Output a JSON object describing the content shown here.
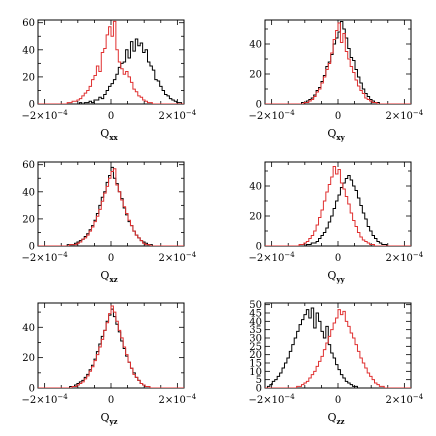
{
  "chart_data": [
    {
      "type": "histogram",
      "xlabel": "Q",
      "xlabel_sub": "xx",
      "xlim": [
        -0.00022,
        0.00022
      ],
      "ylim": [
        0,
        62
      ],
      "xticks": [
        -0.0002,
        0,
        0.0002
      ],
      "xtick_labels": [
        "−2×10",
        "0",
        "2×10"
      ],
      "xtick_exponents": [
        "−4",
        "",
        "−4"
      ],
      "yticks": [
        0,
        20,
        40,
        60
      ],
      "ytick_labels": [
        "0",
        "20",
        "40",
        "60"
      ],
      "series": [
        {
          "color": "#000000",
          "values": [
            0,
            0,
            0,
            0,
            0,
            0,
            0,
            0,
            0,
            0,
            0,
            0,
            0,
            0,
            0,
            0,
            0,
            1,
            0,
            1,
            1,
            2,
            1,
            3,
            3,
            5,
            4,
            7,
            10,
            13,
            15,
            18,
            22,
            27,
            30,
            31,
            40,
            34,
            46,
            39,
            48,
            43,
            45,
            38,
            40,
            31,
            28,
            25,
            18,
            17,
            13,
            10,
            7,
            6,
            4,
            3,
            2,
            1,
            1,
            0
          ]
        },
        {
          "color": "#e03030",
          "values": [
            0,
            0,
            0,
            0,
            0,
            0,
            0,
            0,
            0,
            0,
            0,
            0,
            1,
            1,
            2,
            2,
            3,
            4,
            6,
            8,
            10,
            13,
            18,
            21,
            28,
            24,
            38,
            41,
            51,
            57,
            50,
            61,
            40,
            31,
            26,
            22,
            24,
            20,
            16,
            11,
            9,
            6,
            5,
            3,
            2,
            1,
            1,
            0,
            0,
            0,
            0,
            0,
            0,
            0,
            0,
            0,
            0,
            0,
            0,
            0
          ]
        }
      ]
    },
    {
      "type": "histogram",
      "xlabel": "Q",
      "xlabel_sub": "xy",
      "xlim": [
        -0.00022,
        0.00022
      ],
      "ylim": [
        0,
        56
      ],
      "xticks": [
        -0.0002,
        0,
        0.0002
      ],
      "xtick_labels": [
        "−2×10",
        "0",
        "2×10"
      ],
      "xtick_exponents": [
        "−4",
        "",
        "−4"
      ],
      "yticks": [
        0,
        20,
        40
      ],
      "ytick_labels": [
        "0",
        "20",
        "40"
      ],
      "series": [
        {
          "color": "#000000",
          "values": [
            0,
            0,
            0,
            0,
            0,
            0,
            0,
            0,
            0,
            0,
            0,
            0,
            0,
            0,
            0,
            1,
            1,
            2,
            3,
            4,
            6,
            9,
            11,
            15,
            19,
            25,
            28,
            33,
            40,
            44,
            48,
            55,
            50,
            44,
            37,
            31,
            29,
            23,
            18,
            14,
            10,
            7,
            5,
            3,
            2,
            1,
            1,
            0,
            0,
            0,
            0,
            0,
            0,
            0,
            0,
            0,
            0,
            0,
            0,
            0
          ]
        },
        {
          "color": "#e03030",
          "values": [
            0,
            0,
            0,
            0,
            0,
            0,
            0,
            0,
            0,
            0,
            0,
            0,
            0,
            0,
            0,
            0,
            1,
            1,
            2,
            3,
            5,
            8,
            10,
            14,
            18,
            23,
            27,
            34,
            43,
            49,
            54,
            41,
            47,
            35,
            30,
            25,
            21,
            16,
            12,
            9,
            7,
            4,
            3,
            2,
            1,
            1,
            0,
            0,
            0,
            0,
            0,
            0,
            0,
            0,
            0,
            0,
            0,
            0,
            0,
            0
          ]
        }
      ]
    },
    {
      "type": "histogram",
      "xlabel": "Q",
      "xlabel_sub": "xz",
      "xlim": [
        -0.00022,
        0.00022
      ],
      "ylim": [
        0,
        62
      ],
      "xticks": [
        -0.0002,
        0,
        0.0002
      ],
      "xtick_labels": [
        "−2×10",
        "0",
        "2×10"
      ],
      "xtick_exponents": [
        "−4",
        "",
        "−4"
      ],
      "yticks": [
        0,
        20,
        40,
        60
      ],
      "ytick_labels": [
        "0",
        "20",
        "40",
        "60"
      ],
      "series": [
        {
          "color": "#000000",
          "values": [
            0,
            0,
            0,
            0,
            0,
            0,
            0,
            0,
            0,
            0,
            0,
            0,
            1,
            1,
            1,
            2,
            3,
            4,
            5,
            7,
            9,
            12,
            15,
            19,
            24,
            30,
            36,
            40,
            47,
            52,
            58,
            50,
            46,
            40,
            35,
            28,
            23,
            18,
            15,
            11,
            8,
            6,
            4,
            3,
            2,
            1,
            1,
            0,
            0,
            0,
            0,
            0,
            0,
            0,
            0,
            0,
            0,
            0,
            0,
            0
          ]
        },
        {
          "color": "#e03030",
          "values": [
            0,
            0,
            0,
            0,
            0,
            0,
            0,
            0,
            0,
            0,
            0,
            0,
            0,
            1,
            1,
            1,
            2,
            3,
            5,
            6,
            8,
            11,
            14,
            18,
            22,
            27,
            33,
            39,
            44,
            50,
            55,
            57,
            45,
            40,
            34,
            29,
            24,
            19,
            15,
            11,
            8,
            6,
            4,
            2,
            1,
            1,
            0,
            0,
            0,
            0,
            0,
            0,
            0,
            0,
            0,
            0,
            0,
            0,
            0,
            0
          ]
        }
      ]
    },
    {
      "type": "histogram",
      "xlabel": "Q",
      "xlabel_sub": "yy",
      "xlim": [
        -0.00022,
        0.00022
      ],
      "ylim": [
        0,
        56
      ],
      "xticks": [
        -0.0002,
        0,
        0.0002
      ],
      "xtick_labels": [
        "−2×10",
        "0",
        "2×10"
      ],
      "xtick_exponents": [
        "−4",
        "",
        "−4"
      ],
      "yticks": [
        0,
        20,
        40
      ],
      "ytick_labels": [
        "0",
        "20",
        "40"
      ],
      "series": [
        {
          "color": "#000000",
          "values": [
            0,
            0,
            0,
            0,
            0,
            0,
            0,
            0,
            0,
            0,
            0,
            0,
            0,
            0,
            0,
            0,
            0,
            1,
            1,
            2,
            2,
            3,
            5,
            7,
            9,
            12,
            16,
            20,
            25,
            30,
            34,
            39,
            42,
            45,
            47,
            44,
            40,
            37,
            32,
            27,
            22,
            18,
            13,
            10,
            7,
            5,
            3,
            2,
            1,
            1,
            0,
            0,
            0,
            0,
            0,
            0,
            0,
            0,
            0,
            0
          ]
        },
        {
          "color": "#e03030",
          "values": [
            0,
            0,
            0,
            0,
            0,
            0,
            0,
            0,
            0,
            0,
            0,
            0,
            0,
            0,
            1,
            1,
            2,
            3,
            5,
            7,
            10,
            14,
            19,
            24,
            30,
            36,
            41,
            46,
            53,
            48,
            51,
            42,
            38,
            33,
            28,
            22,
            17,
            13,
            9,
            6,
            4,
            3,
            2,
            1,
            1,
            0,
            0,
            0,
            0,
            0,
            0,
            0,
            0,
            0,
            0,
            0,
            0,
            0,
            0,
            0
          ]
        }
      ]
    },
    {
      "type": "histogram",
      "xlabel": "Q",
      "xlabel_sub": "yz",
      "xlim": [
        -0.00022,
        0.00022
      ],
      "ylim": [
        0,
        56
      ],
      "xticks": [
        -0.0002,
        0,
        0.0002
      ],
      "xtick_labels": [
        "−2×10",
        "0",
        "2×10"
      ],
      "xtick_exponents": [
        "−4",
        "",
        "−4"
      ],
      "yticks": [
        0,
        20,
        40
      ],
      "ytick_labels": [
        "0",
        "20",
        "40"
      ],
      "series": [
        {
          "color": "#000000",
          "values": [
            0,
            0,
            0,
            0,
            0,
            0,
            0,
            0,
            0,
            0,
            0,
            0,
            0,
            1,
            1,
            2,
            3,
            4,
            5,
            7,
            9,
            12,
            15,
            19,
            24,
            29,
            34,
            38,
            44,
            48,
            52,
            47,
            42,
            37,
            31,
            26,
            21,
            17,
            13,
            10,
            7,
            5,
            3,
            2,
            1,
            1,
            0,
            0,
            0,
            0,
            0,
            0,
            0,
            0,
            0,
            0,
            0,
            0,
            0,
            0
          ]
        },
        {
          "color": "#e03030",
          "values": [
            0,
            0,
            0,
            0,
            0,
            0,
            0,
            0,
            0,
            0,
            0,
            0,
            0,
            0,
            1,
            1,
            2,
            3,
            4,
            6,
            8,
            11,
            14,
            18,
            22,
            27,
            32,
            38,
            43,
            49,
            54,
            50,
            44,
            38,
            33,
            27,
            22,
            17,
            13,
            9,
            7,
            5,
            3,
            2,
            1,
            1,
            0,
            0,
            0,
            0,
            0,
            0,
            0,
            0,
            0,
            0,
            0,
            0,
            0,
            0
          ]
        }
      ]
    },
    {
      "type": "histogram",
      "xlabel": "Q",
      "xlabel_sub": "zz",
      "xlim": [
        -0.00022,
        0.00022
      ],
      "ylim": [
        0,
        51
      ],
      "xticks": [
        -0.0002,
        0,
        0.0002
      ],
      "xtick_labels": [
        "−2×10",
        "0",
        "2×10"
      ],
      "xtick_exponents": [
        "−4",
        "",
        "−4"
      ],
      "yticks": [
        0,
        5,
        10,
        15,
        20,
        25,
        30,
        35,
        40,
        45,
        50
      ],
      "ytick_labels": [
        "0",
        "5",
        "10",
        "15",
        "20",
        "25",
        "30",
        "35",
        "40",
        "45",
        "50"
      ],
      "series": [
        {
          "color": "#000000",
          "values": [
            0,
            1,
            2,
            4,
            5,
            7,
            9,
            12,
            15,
            18,
            22,
            26,
            30,
            34,
            38,
            41,
            44,
            47,
            42,
            48,
            36,
            45,
            40,
            34,
            30,
            37,
            26,
            21,
            18,
            14,
            11,
            8,
            6,
            4,
            3,
            2,
            1,
            1,
            0,
            0,
            0,
            0,
            0,
            0,
            0,
            0,
            0,
            0,
            0,
            0,
            0,
            0,
            0,
            0,
            0,
            0,
            0,
            0,
            0,
            0
          ]
        },
        {
          "color": "#e03030",
          "values": [
            0,
            0,
            0,
            0,
            0,
            0,
            0,
            0,
            0,
            0,
            0,
            0,
            0,
            1,
            1,
            2,
            3,
            4,
            6,
            8,
            10,
            13,
            16,
            19,
            23,
            27,
            31,
            35,
            39,
            42,
            47,
            44,
            46,
            40,
            37,
            33,
            30,
            26,
            22,
            18,
            15,
            12,
            9,
            7,
            5,
            3,
            2,
            1,
            1,
            0,
            0,
            0,
            0,
            0,
            0,
            0,
            0,
            0,
            0,
            0
          ]
        }
      ]
    }
  ]
}
